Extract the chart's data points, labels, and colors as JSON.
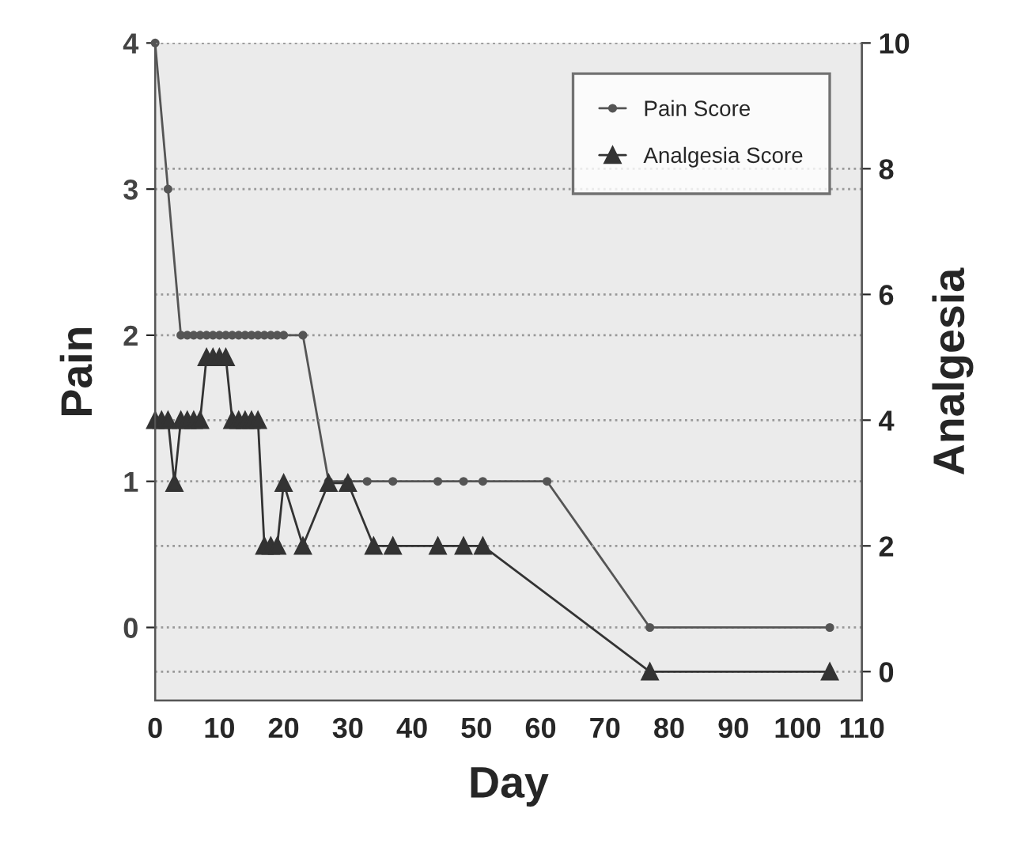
{
  "chart_data": {
    "type": "line",
    "xlabel": "Day",
    "ylabel": "Pain",
    "y2label": "Analgesia",
    "xlim": [
      0,
      110
    ],
    "xticks": [
      0,
      10,
      20,
      30,
      40,
      50,
      60,
      70,
      80,
      90,
      100,
      110
    ],
    "ylim": [
      -0.5,
      4
    ],
    "yticks": [
      0,
      1,
      2,
      3,
      4
    ],
    "y2lim": [
      -0.46,
      10
    ],
    "y2ticks": [
      0,
      2,
      4,
      6,
      8,
      10
    ],
    "grid": "y",
    "legend": "top right",
    "series": [
      {
        "name": "Pain Score",
        "color": "#555555",
        "marker": "circle",
        "x": [
          0,
          2,
          4,
          5,
          6,
          7,
          8,
          9,
          10,
          11,
          12,
          13,
          14,
          15,
          16,
          17,
          18,
          19,
          20,
          23,
          27,
          30,
          33,
          37,
          44,
          48,
          51,
          61,
          77,
          105
        ],
        "values": [
          4,
          3,
          2,
          2,
          2,
          2,
          2,
          2,
          2,
          2,
          2,
          2,
          2,
          2,
          2,
          2,
          2,
          2,
          2,
          2,
          1,
          1,
          1,
          1,
          1,
          1,
          1,
          1,
          0,
          0
        ]
      },
      {
        "name": "Analgesia Score",
        "color": "#333333",
        "marker": "triangle",
        "axis": "y2",
        "x": [
          0,
          1,
          2,
          3,
          4,
          5,
          6,
          7,
          8,
          9,
          10,
          11,
          12,
          13,
          14,
          15,
          16,
          17,
          18,
          19,
          20,
          23,
          27,
          30,
          34,
          37,
          44,
          48,
          51,
          77,
          105
        ],
        "values": [
          4,
          4,
          4,
          3,
          4,
          4,
          4,
          4,
          5,
          5,
          5,
          5,
          4,
          4,
          4,
          4,
          4,
          2,
          2,
          2,
          3,
          2,
          3,
          3,
          2,
          2,
          2,
          2,
          2,
          0,
          0
        ]
      }
    ]
  }
}
